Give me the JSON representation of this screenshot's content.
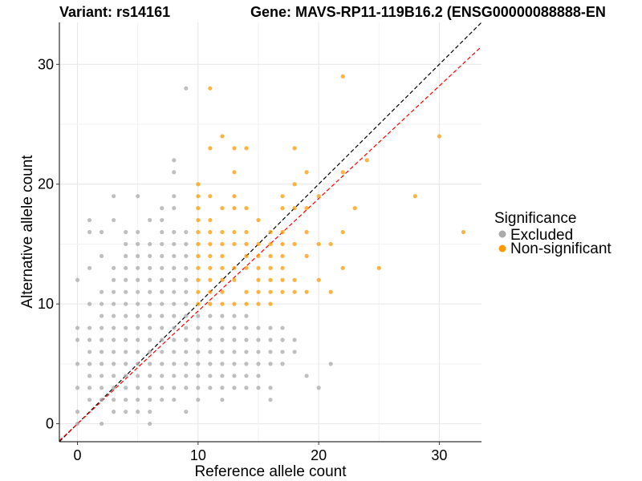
{
  "chart_data": {
    "type": "scatter",
    "title_left": "Variant: rs14161",
    "title_right": "Gene: MAVS-RP11-119B16.2 (ENSG00000088888-EN",
    "xlabel": "Reference allele count",
    "ylabel": "Alternative allele count",
    "xlim": [
      -1.5,
      33.5
    ],
    "ylim": [
      -1.5,
      33.5
    ],
    "xticks": [
      0,
      10,
      20,
      30
    ],
    "yticks": [
      0,
      10,
      20,
      30
    ],
    "grid": true,
    "legend": {
      "title": "Significance",
      "position": "right",
      "entries": [
        {
          "label": "Excluded",
          "color": "#aaaaaa"
        },
        {
          "label": "Non-significant",
          "color": "#ff9900"
        }
      ]
    },
    "reference_lines": [
      {
        "name": "identity",
        "slope": 1,
        "intercept": 0,
        "color": "#000000",
        "dash": true
      },
      {
        "name": "fit",
        "slope": 0.94,
        "intercept": 0,
        "color": "#ff0000",
        "dash": true
      }
    ],
    "series": [
      {
        "name": "Excluded",
        "color": "#aaaaaa",
        "points": [
          [
            0,
            0
          ],
          [
            0,
            1
          ],
          [
            0,
            3
          ],
          [
            0,
            5
          ],
          [
            0,
            7
          ],
          [
            0,
            8
          ],
          [
            0,
            12
          ],
          [
            1,
            2
          ],
          [
            1,
            3
          ],
          [
            1,
            4
          ],
          [
            1,
            5
          ],
          [
            1,
            6
          ],
          [
            1,
            7
          ],
          [
            1,
            8
          ],
          [
            1,
            10
          ],
          [
            1,
            13
          ],
          [
            1,
            16
          ],
          [
            1,
            17
          ],
          [
            2,
            0
          ],
          [
            2,
            2
          ],
          [
            2,
            3
          ],
          [
            2,
            4
          ],
          [
            2,
            5
          ],
          [
            2,
            6
          ],
          [
            2,
            7
          ],
          [
            2,
            8
          ],
          [
            2,
            9
          ],
          [
            2,
            10
          ],
          [
            2,
            11
          ],
          [
            2,
            14
          ],
          [
            2,
            16
          ],
          [
            3,
            1
          ],
          [
            3,
            2
          ],
          [
            3,
            3
          ],
          [
            3,
            4
          ],
          [
            3,
            5
          ],
          [
            3,
            6
          ],
          [
            3,
            7
          ],
          [
            3,
            8
          ],
          [
            3,
            9
          ],
          [
            3,
            10
          ],
          [
            3,
            11
          ],
          [
            3,
            12
          ],
          [
            3,
            13
          ],
          [
            3,
            17
          ],
          [
            3,
            19
          ],
          [
            4,
            1
          ],
          [
            4,
            2
          ],
          [
            4,
            3
          ],
          [
            4,
            4
          ],
          [
            4,
            5
          ],
          [
            4,
            6
          ],
          [
            4,
            7
          ],
          [
            4,
            8
          ],
          [
            4,
            9
          ],
          [
            4,
            10
          ],
          [
            4,
            11
          ],
          [
            4,
            12
          ],
          [
            4,
            13
          ],
          [
            4,
            14
          ],
          [
            4,
            15
          ],
          [
            4,
            16
          ],
          [
            5,
            1
          ],
          [
            5,
            2
          ],
          [
            5,
            3
          ],
          [
            5,
            4
          ],
          [
            5,
            5
          ],
          [
            5,
            6
          ],
          [
            5,
            7
          ],
          [
            5,
            8
          ],
          [
            5,
            9
          ],
          [
            5,
            10
          ],
          [
            5,
            11
          ],
          [
            5,
            12
          ],
          [
            5,
            13
          ],
          [
            5,
            14
          ],
          [
            5,
            15
          ],
          [
            5,
            16
          ],
          [
            5,
            19
          ],
          [
            6,
            0
          ],
          [
            6,
            1
          ],
          [
            6,
            2
          ],
          [
            6,
            3
          ],
          [
            6,
            4
          ],
          [
            6,
            5
          ],
          [
            6,
            6
          ],
          [
            6,
            7
          ],
          [
            6,
            8
          ],
          [
            6,
            9
          ],
          [
            6,
            10
          ],
          [
            6,
            11
          ],
          [
            6,
            12
          ],
          [
            6,
            13
          ],
          [
            6,
            14
          ],
          [
            6,
            15
          ],
          [
            6,
            17
          ],
          [
            7,
            2
          ],
          [
            7,
            3
          ],
          [
            7,
            4
          ],
          [
            7,
            5
          ],
          [
            7,
            6
          ],
          [
            7,
            7
          ],
          [
            7,
            8
          ],
          [
            7,
            9
          ],
          [
            7,
            10
          ],
          [
            7,
            11
          ],
          [
            7,
            12
          ],
          [
            7,
            13
          ],
          [
            7,
            14
          ],
          [
            7,
            15
          ],
          [
            7,
            16
          ],
          [
            7,
            17
          ],
          [
            7,
            18
          ],
          [
            8,
            2
          ],
          [
            8,
            3
          ],
          [
            8,
            4
          ],
          [
            8,
            5
          ],
          [
            8,
            6
          ],
          [
            8,
            7
          ],
          [
            8,
            8
          ],
          [
            8,
            9
          ],
          [
            8,
            10
          ],
          [
            8,
            11
          ],
          [
            8,
            12
          ],
          [
            8,
            13
          ],
          [
            8,
            14
          ],
          [
            8,
            15
          ],
          [
            8,
            16
          ],
          [
            8,
            18
          ],
          [
            8,
            19
          ],
          [
            8,
            21
          ],
          [
            8,
            22
          ],
          [
            9,
            1
          ],
          [
            9,
            3
          ],
          [
            9,
            4
          ],
          [
            9,
            5
          ],
          [
            9,
            6
          ],
          [
            9,
            7
          ],
          [
            9,
            8
          ],
          [
            9,
            9
          ],
          [
            9,
            10
          ],
          [
            9,
            11
          ],
          [
            9,
            12
          ],
          [
            9,
            13
          ],
          [
            9,
            14
          ],
          [
            9,
            15
          ],
          [
            9,
            16
          ],
          [
            9,
            28
          ],
          [
            10,
            2
          ],
          [
            10,
            3
          ],
          [
            10,
            4
          ],
          [
            10,
            5
          ],
          [
            10,
            6
          ],
          [
            10,
            7
          ],
          [
            10,
            8
          ],
          [
            10,
            9
          ],
          [
            11,
            3
          ],
          [
            11,
            4
          ],
          [
            11,
            5
          ],
          [
            11,
            6
          ],
          [
            11,
            7
          ],
          [
            11,
            8
          ],
          [
            11,
            9
          ],
          [
            12,
            2
          ],
          [
            12,
            3
          ],
          [
            12,
            4
          ],
          [
            12,
            5
          ],
          [
            12,
            6
          ],
          [
            12,
            7
          ],
          [
            12,
            8
          ],
          [
            12,
            9
          ],
          [
            13,
            3
          ],
          [
            13,
            4
          ],
          [
            13,
            5
          ],
          [
            13,
            6
          ],
          [
            13,
            7
          ],
          [
            13,
            8
          ],
          [
            13,
            9
          ],
          [
            14,
            3
          ],
          [
            14,
            4
          ],
          [
            14,
            5
          ],
          [
            14,
            6
          ],
          [
            14,
            7
          ],
          [
            14,
            8
          ],
          [
            14,
            9
          ],
          [
            15,
            3
          ],
          [
            15,
            4
          ],
          [
            15,
            5
          ],
          [
            15,
            6
          ],
          [
            15,
            7
          ],
          [
            15,
            8
          ],
          [
            16,
            2
          ],
          [
            16,
            3
          ],
          [
            16,
            5
          ],
          [
            16,
            6
          ],
          [
            16,
            7
          ],
          [
            16,
            8
          ],
          [
            17,
            5
          ],
          [
            17,
            6
          ],
          [
            17,
            7
          ],
          [
            17,
            8
          ],
          [
            18,
            6
          ],
          [
            18,
            7
          ],
          [
            19,
            4
          ],
          [
            20,
            3
          ],
          [
            21,
            5
          ]
        ]
      },
      {
        "name": "Non-significant",
        "color": "#ff9900",
        "points": [
          [
            10,
            10
          ],
          [
            10,
            11
          ],
          [
            10,
            12
          ],
          [
            10,
            13
          ],
          [
            10,
            14
          ],
          [
            10,
            15
          ],
          [
            10,
            16
          ],
          [
            10,
            17
          ],
          [
            10,
            18
          ],
          [
            10,
            19
          ],
          [
            10,
            20
          ],
          [
            11,
            10
          ],
          [
            11,
            11
          ],
          [
            11,
            12
          ],
          [
            11,
            13
          ],
          [
            11,
            14
          ],
          [
            11,
            15
          ],
          [
            11,
            16
          ],
          [
            11,
            17
          ],
          [
            11,
            19
          ],
          [
            11,
            23
          ],
          [
            11,
            28
          ],
          [
            12,
            10
          ],
          [
            12,
            11
          ],
          [
            12,
            12
          ],
          [
            12,
            13
          ],
          [
            12,
            14
          ],
          [
            12,
            15
          ],
          [
            12,
            16
          ],
          [
            12,
            18
          ],
          [
            12,
            24
          ],
          [
            13,
            10
          ],
          [
            13,
            12
          ],
          [
            13,
            13
          ],
          [
            13,
            15
          ],
          [
            13,
            16
          ],
          [
            13,
            18
          ],
          [
            13,
            19
          ],
          [
            13,
            21
          ],
          [
            13,
            23
          ],
          [
            14,
            10
          ],
          [
            14,
            11
          ],
          [
            14,
            13
          ],
          [
            14,
            14
          ],
          [
            14,
            15
          ],
          [
            14,
            16
          ],
          [
            14,
            18
          ],
          [
            14,
            23
          ],
          [
            15,
            10
          ],
          [
            15,
            11
          ],
          [
            15,
            12
          ],
          [
            15,
            13
          ],
          [
            15,
            14
          ],
          [
            15,
            15
          ],
          [
            15,
            17
          ],
          [
            16,
            10
          ],
          [
            16,
            11
          ],
          [
            16,
            12
          ],
          [
            16,
            13
          ],
          [
            16,
            14
          ],
          [
            16,
            15
          ],
          [
            16,
            16
          ],
          [
            17,
            11
          ],
          [
            17,
            12
          ],
          [
            17,
            13
          ],
          [
            17,
            14
          ],
          [
            17,
            15
          ],
          [
            17,
            16
          ],
          [
            17,
            18
          ],
          [
            17,
            19
          ],
          [
            18,
            11
          ],
          [
            18,
            12
          ],
          [
            18,
            15
          ],
          [
            18,
            18
          ],
          [
            18,
            20
          ],
          [
            18,
            23
          ],
          [
            19,
            11
          ],
          [
            19,
            14
          ],
          [
            19,
            16
          ],
          [
            19,
            18
          ],
          [
            19,
            21
          ],
          [
            20,
            12
          ],
          [
            20,
            15
          ],
          [
            20,
            19
          ],
          [
            21,
            11
          ],
          [
            21,
            15
          ],
          [
            22,
            13
          ],
          [
            22,
            16
          ],
          [
            22,
            21
          ],
          [
            22,
            29
          ],
          [
            23,
            18
          ],
          [
            24,
            22
          ],
          [
            25,
            13
          ],
          [
            28,
            19
          ],
          [
            30,
            24
          ],
          [
            32,
            16
          ]
        ]
      }
    ]
  }
}
